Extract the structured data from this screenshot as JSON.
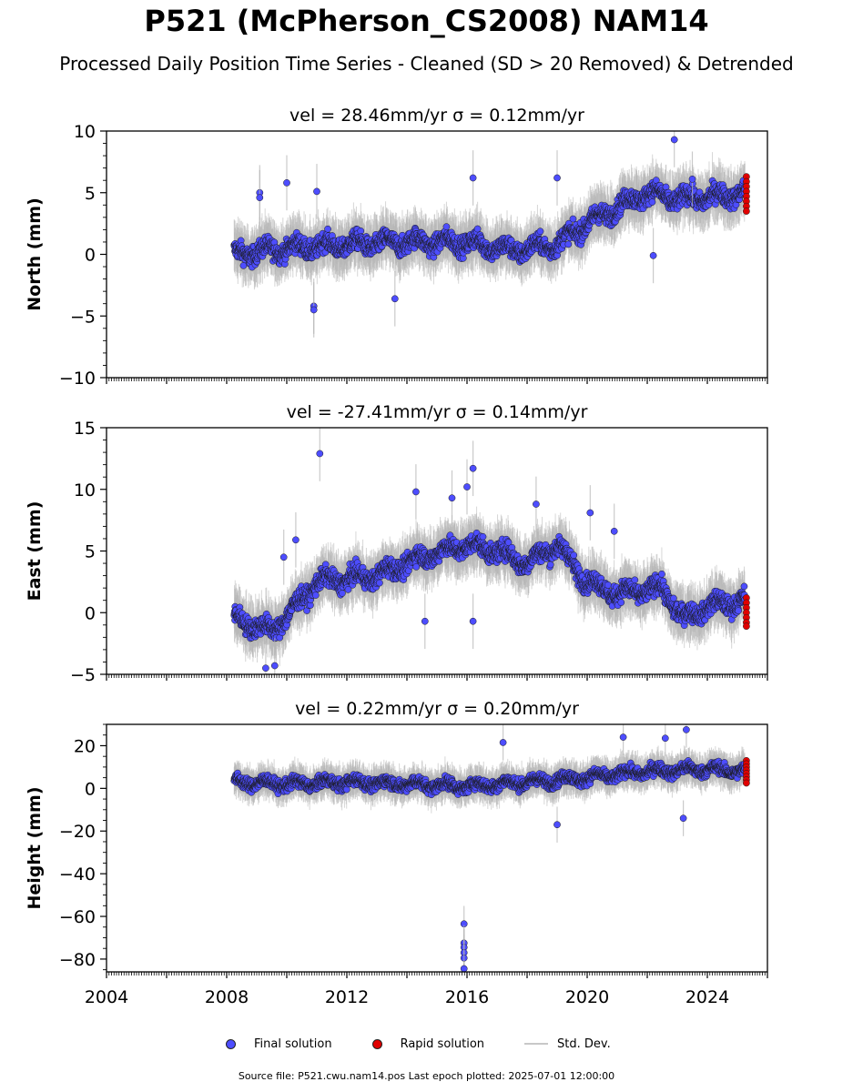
{
  "title": "P521 (McPherson_CS2008) NAM14",
  "subtitle": "Processed Daily Position Time Series - Cleaned (SD > 20 Removed) & Detrended",
  "legend": {
    "final": "Final solution",
    "rapid": "Rapid solution",
    "std": "Std. Dev."
  },
  "footer": "Source file: P521.cwu.nam14.pos  Last epoch plotted: 2025-07-01 12:00:00",
  "colors": {
    "final": "#4d4dff",
    "rapid": "#e00000",
    "std": "#b4b4b4",
    "marker_edge": "#1a1a1a"
  },
  "chart_data": [
    {
      "type": "scatter",
      "panel": "north",
      "title": "vel = 28.46mm/yr   σ = 0.12mm/yr",
      "xlabel": "",
      "ylabel": "North (mm)",
      "xlim": [
        2004,
        2026
      ],
      "ylim": [
        -10,
        10
      ],
      "yticks": [
        -10,
        -5,
        0,
        5,
        10
      ],
      "yticklabels": [
        "−10",
        "−5",
        "0",
        "5",
        "10"
      ],
      "data_start": 2008.25,
      "data_end": 2025.25,
      "trend": [
        [
          2008.3,
          0.0
        ],
        [
          2010,
          0.5
        ],
        [
          2012,
          0.8
        ],
        [
          2014,
          1.0
        ],
        [
          2016,
          1.0
        ],
        [
          2017.5,
          0.3
        ],
        [
          2019,
          0.8
        ],
        [
          2020,
          2.5
        ],
        [
          2021,
          3.8
        ],
        [
          2022,
          5.0
        ],
        [
          2023,
          4.5
        ],
        [
          2024,
          4.6
        ],
        [
          2025.25,
          5.0
        ]
      ],
      "series": [
        {
          "name": "Final solution",
          "role": "final",
          "outliers": [
            [
              2009.1,
              5.0
            ],
            [
              2009.1,
              4.6
            ],
            [
              2010.0,
              5.8
            ],
            [
              2011.0,
              5.1
            ],
            [
              2010.9,
              -4.2
            ],
            [
              2010.9,
              -4.5
            ],
            [
              2022.2,
              -0.1
            ],
            [
              2013.6,
              -3.6
            ],
            [
              2019.0,
              6.2
            ],
            [
              2016.2,
              6.2
            ],
            [
              2022.9,
              9.3
            ],
            [
              2023.5,
              6.1
            ]
          ]
        },
        {
          "name": "Rapid solution",
          "role": "rapid",
          "points": [
            [
              2025.3,
              6.3
            ],
            [
              2025.3,
              5.9
            ],
            [
              2025.3,
              5.5
            ],
            [
              2025.3,
              5.1
            ],
            [
              2025.3,
              4.7
            ],
            [
              2025.3,
              4.3
            ],
            [
              2025.3,
              3.9
            ],
            [
              2025.3,
              3.5
            ]
          ]
        }
      ]
    },
    {
      "type": "scatter",
      "panel": "east",
      "title": "vel = -27.41mm/yr   σ = 0.14mm/yr",
      "xlabel": "",
      "ylabel": "East (mm)",
      "xlim": [
        2004,
        2026
      ],
      "ylim": [
        -5,
        15
      ],
      "yticks": [
        -5,
        0,
        5,
        10,
        15
      ],
      "yticklabels": [
        "−5",
        "0",
        "5",
        "10",
        "15"
      ],
      "data_start": 2008.25,
      "data_end": 2025.25,
      "trend": [
        [
          2008.3,
          -0.5
        ],
        [
          2009.5,
          -1.5
        ],
        [
          2010.3,
          0.5
        ],
        [
          2011,
          2.5
        ],
        [
          2013,
          3.0
        ],
        [
          2014.5,
          4.5
        ],
        [
          2016,
          5.5
        ],
        [
          2017,
          5.0
        ],
        [
          2018,
          4.0
        ],
        [
          2019,
          5.5
        ],
        [
          2020,
          2.5
        ],
        [
          2021,
          1.5
        ],
        [
          2022.5,
          2.0
        ],
        [
          2023.2,
          -0.5
        ],
        [
          2024,
          0.5
        ],
        [
          2025.25,
          1.0
        ]
      ],
      "series": [
        {
          "name": "Final solution",
          "role": "final",
          "outliers": [
            [
              2011.1,
              12.9
            ],
            [
              2014.3,
              9.8
            ],
            [
              2015.5,
              9.3
            ],
            [
              2016.2,
              11.7
            ],
            [
              2016.0,
              10.2
            ],
            [
              2018.3,
              8.8
            ],
            [
              2020.1,
              8.1
            ],
            [
              2014.6,
              -0.7
            ],
            [
              2016.2,
              -0.7
            ],
            [
              2020.9,
              6.6
            ],
            [
              2009.9,
              4.5
            ],
            [
              2010.3,
              5.9
            ],
            [
              2009.3,
              -4.5
            ],
            [
              2009.6,
              -4.3
            ]
          ]
        },
        {
          "name": "Rapid solution",
          "role": "rapid",
          "points": [
            [
              2025.3,
              1.2
            ],
            [
              2025.3,
              0.8
            ],
            [
              2025.3,
              0.4
            ],
            [
              2025.3,
              0.0
            ],
            [
              2025.3,
              -0.4
            ],
            [
              2025.3,
              -0.8
            ],
            [
              2025.3,
              -1.1
            ]
          ]
        }
      ]
    },
    {
      "type": "scatter",
      "panel": "height",
      "title": "vel = 0.22mm/yr   σ = 0.20mm/yr",
      "xlabel": "",
      "ylabel": "Height (mm)",
      "xlim": [
        2004,
        2026
      ],
      "ylim": [
        -86,
        30
      ],
      "yticks": [
        -80,
        -60,
        -40,
        -20,
        0,
        20
      ],
      "yticklabels": [
        "−80",
        "−60",
        "−40",
        "−20",
        "0",
        "20"
      ],
      "xticks": [
        2004,
        2008,
        2012,
        2016,
        2020,
        2024
      ],
      "data_start": 2008.25,
      "data_end": 2025.25,
      "trend": [
        [
          2008.3,
          3.0
        ],
        [
          2010,
          2.0
        ],
        [
          2012,
          3.0
        ],
        [
          2014,
          2.0
        ],
        [
          2016,
          1.0
        ],
        [
          2018,
          3.0
        ],
        [
          2020,
          5.0
        ],
        [
          2022,
          8.0
        ],
        [
          2024,
          9.0
        ],
        [
          2025.25,
          8.0
        ]
      ],
      "series": [
        {
          "name": "Final solution",
          "role": "final",
          "outliers": [
            [
              2015.9,
              -63.5
            ],
            [
              2015.9,
              -72.5
            ],
            [
              2015.9,
              -74.5
            ],
            [
              2015.9,
              -77.0
            ],
            [
              2015.9,
              -79.5
            ],
            [
              2015.9,
              -84.5
            ],
            [
              2017.2,
              21.5
            ],
            [
              2022.6,
              23.5
            ],
            [
              2023.3,
              27.5
            ],
            [
              2023.2,
              -14.0
            ],
            [
              2019.0,
              -17.0
            ],
            [
              2021.2,
              24.0
            ]
          ]
        },
        {
          "name": "Rapid solution",
          "role": "rapid",
          "points": [
            [
              2025.3,
              13.0
            ],
            [
              2025.3,
              11.5
            ],
            [
              2025.3,
              10.0
            ],
            [
              2025.3,
              8.5
            ],
            [
              2025.3,
              7.0
            ],
            [
              2025.3,
              5.5
            ],
            [
              2025.3,
              4.0
            ],
            [
              2025.3,
              2.5
            ]
          ]
        }
      ]
    }
  ]
}
